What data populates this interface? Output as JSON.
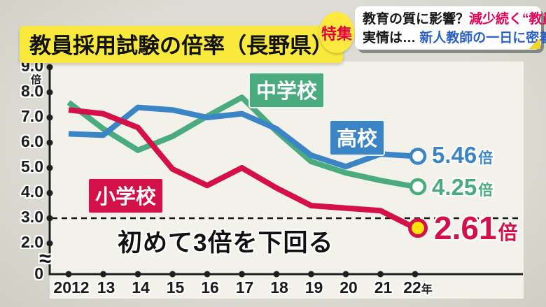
{
  "header": {
    "title": "教員採用試験の倍率（長野県）",
    "feature_badge": "特集",
    "topic_line1_black": "教育の質に影響？",
    "topic_line1_red": "減少続く“教員志望”",
    "topic_line2_black": "実情は…",
    "topic_line2_blue": "新人教師の一日に密着"
  },
  "colors": {
    "background": "#dcdbd3",
    "plot_background": "#f2f1ea",
    "axis": "#1f1f1f",
    "title_highlight_yellow": "#f9e93c",
    "badge_yellow": "#ffe93e",
    "badge_text_red": "#e50041",
    "info_red": "#e30356",
    "info_blue": "#2a5fc8",
    "series_junior_high_green": "#4aab7e",
    "series_high_school_blue": "#3b84c6",
    "series_elementary_red": "#d31148",
    "end_marker_yellow": "#ffe10a"
  },
  "chart_data": {
    "type": "line",
    "title": "教員採用試験の倍率（長野県）",
    "unit_label": "倍",
    "categories": [
      "2012",
      "13",
      "14",
      "15",
      "16",
      "17",
      "18",
      "19",
      "20",
      "21",
      "22年"
    ],
    "y_ticks": [
      9.0,
      8.0,
      7.0,
      6.0,
      5.0,
      4.0,
      3.0,
      2.0
    ],
    "y_zero_label": "0",
    "axis_break_glyph": "≈",
    "ylim": [
      0,
      9.0
    ],
    "grid": false,
    "legend_position": "inline-boxes",
    "reference_line": {
      "value": 3.0,
      "style": "dashed",
      "note": "初めて3倍を下回る"
    },
    "series": [
      {
        "name": "中学校",
        "color": "#4aab7e",
        "values": [
          7.6,
          6.55,
          5.7,
          6.25,
          7.05,
          7.8,
          6.45,
          5.25,
          4.8,
          4.5,
          4.25
        ],
        "end_value_label": "4.25",
        "end_unit": "倍",
        "end_marker_fill": "#ffffff",
        "end_marker_ring": "#4aab7e"
      },
      {
        "name": "高校",
        "color": "#3b84c6",
        "values": [
          6.35,
          6.3,
          7.4,
          7.3,
          7.0,
          7.15,
          6.55,
          5.5,
          5.05,
          5.55,
          5.46
        ],
        "end_value_label": "5.46",
        "end_unit": "倍",
        "end_marker_fill": "#ffffff",
        "end_marker_ring": "#3b84c6"
      },
      {
        "name": "小学校",
        "color": "#d31148",
        "values": [
          7.3,
          7.15,
          6.6,
          4.95,
          4.3,
          5.0,
          4.2,
          3.5,
          3.4,
          3.3,
          2.61
        ],
        "end_value_label": "2.61",
        "end_unit": "倍",
        "end_marker_fill": "#ffe10a",
        "end_marker_ring": "#d31148"
      }
    ]
  }
}
